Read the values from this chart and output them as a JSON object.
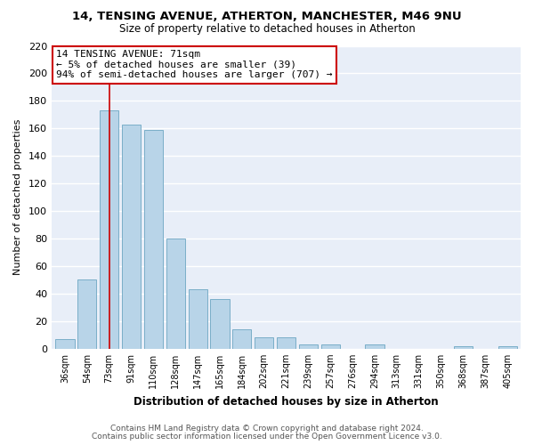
{
  "title": "14, TENSING AVENUE, ATHERTON, MANCHESTER, M46 9NU",
  "subtitle": "Size of property relative to detached houses in Atherton",
  "xlabel": "Distribution of detached houses by size in Atherton",
  "ylabel": "Number of detached properties",
  "bar_labels": [
    "36sqm",
    "54sqm",
    "73sqm",
    "91sqm",
    "110sqm",
    "128sqm",
    "147sqm",
    "165sqm",
    "184sqm",
    "202sqm",
    "221sqm",
    "239sqm",
    "257sqm",
    "276sqm",
    "294sqm",
    "313sqm",
    "331sqm",
    "350sqm",
    "368sqm",
    "387sqm",
    "405sqm"
  ],
  "bar_values": [
    7,
    50,
    173,
    163,
    159,
    80,
    43,
    36,
    14,
    8,
    8,
    3,
    3,
    0,
    3,
    0,
    0,
    0,
    2,
    0,
    2
  ],
  "bar_color": "#b8d4e8",
  "bar_edge_color": "#7aaec8",
  "vline_x_index": 2,
  "vline_color": "#cc0000",
  "annotation_text": "14 TENSING AVENUE: 71sqm\n← 5% of detached houses are smaller (39)\n94% of semi-detached houses are larger (707) →",
  "annotation_box_color": "#ffffff",
  "annotation_box_edge": "#cc0000",
  "ylim": [
    0,
    220
  ],
  "yticks": [
    0,
    20,
    40,
    60,
    80,
    100,
    120,
    140,
    160,
    180,
    200,
    220
  ],
  "footer1": "Contains HM Land Registry data © Crown copyright and database right 2024.",
  "footer2": "Contains public sector information licensed under the Open Government Licence v3.0.",
  "bg_color": "#ffffff",
  "plot_bg_color": "#e8eef8",
  "grid_color": "#ffffff"
}
